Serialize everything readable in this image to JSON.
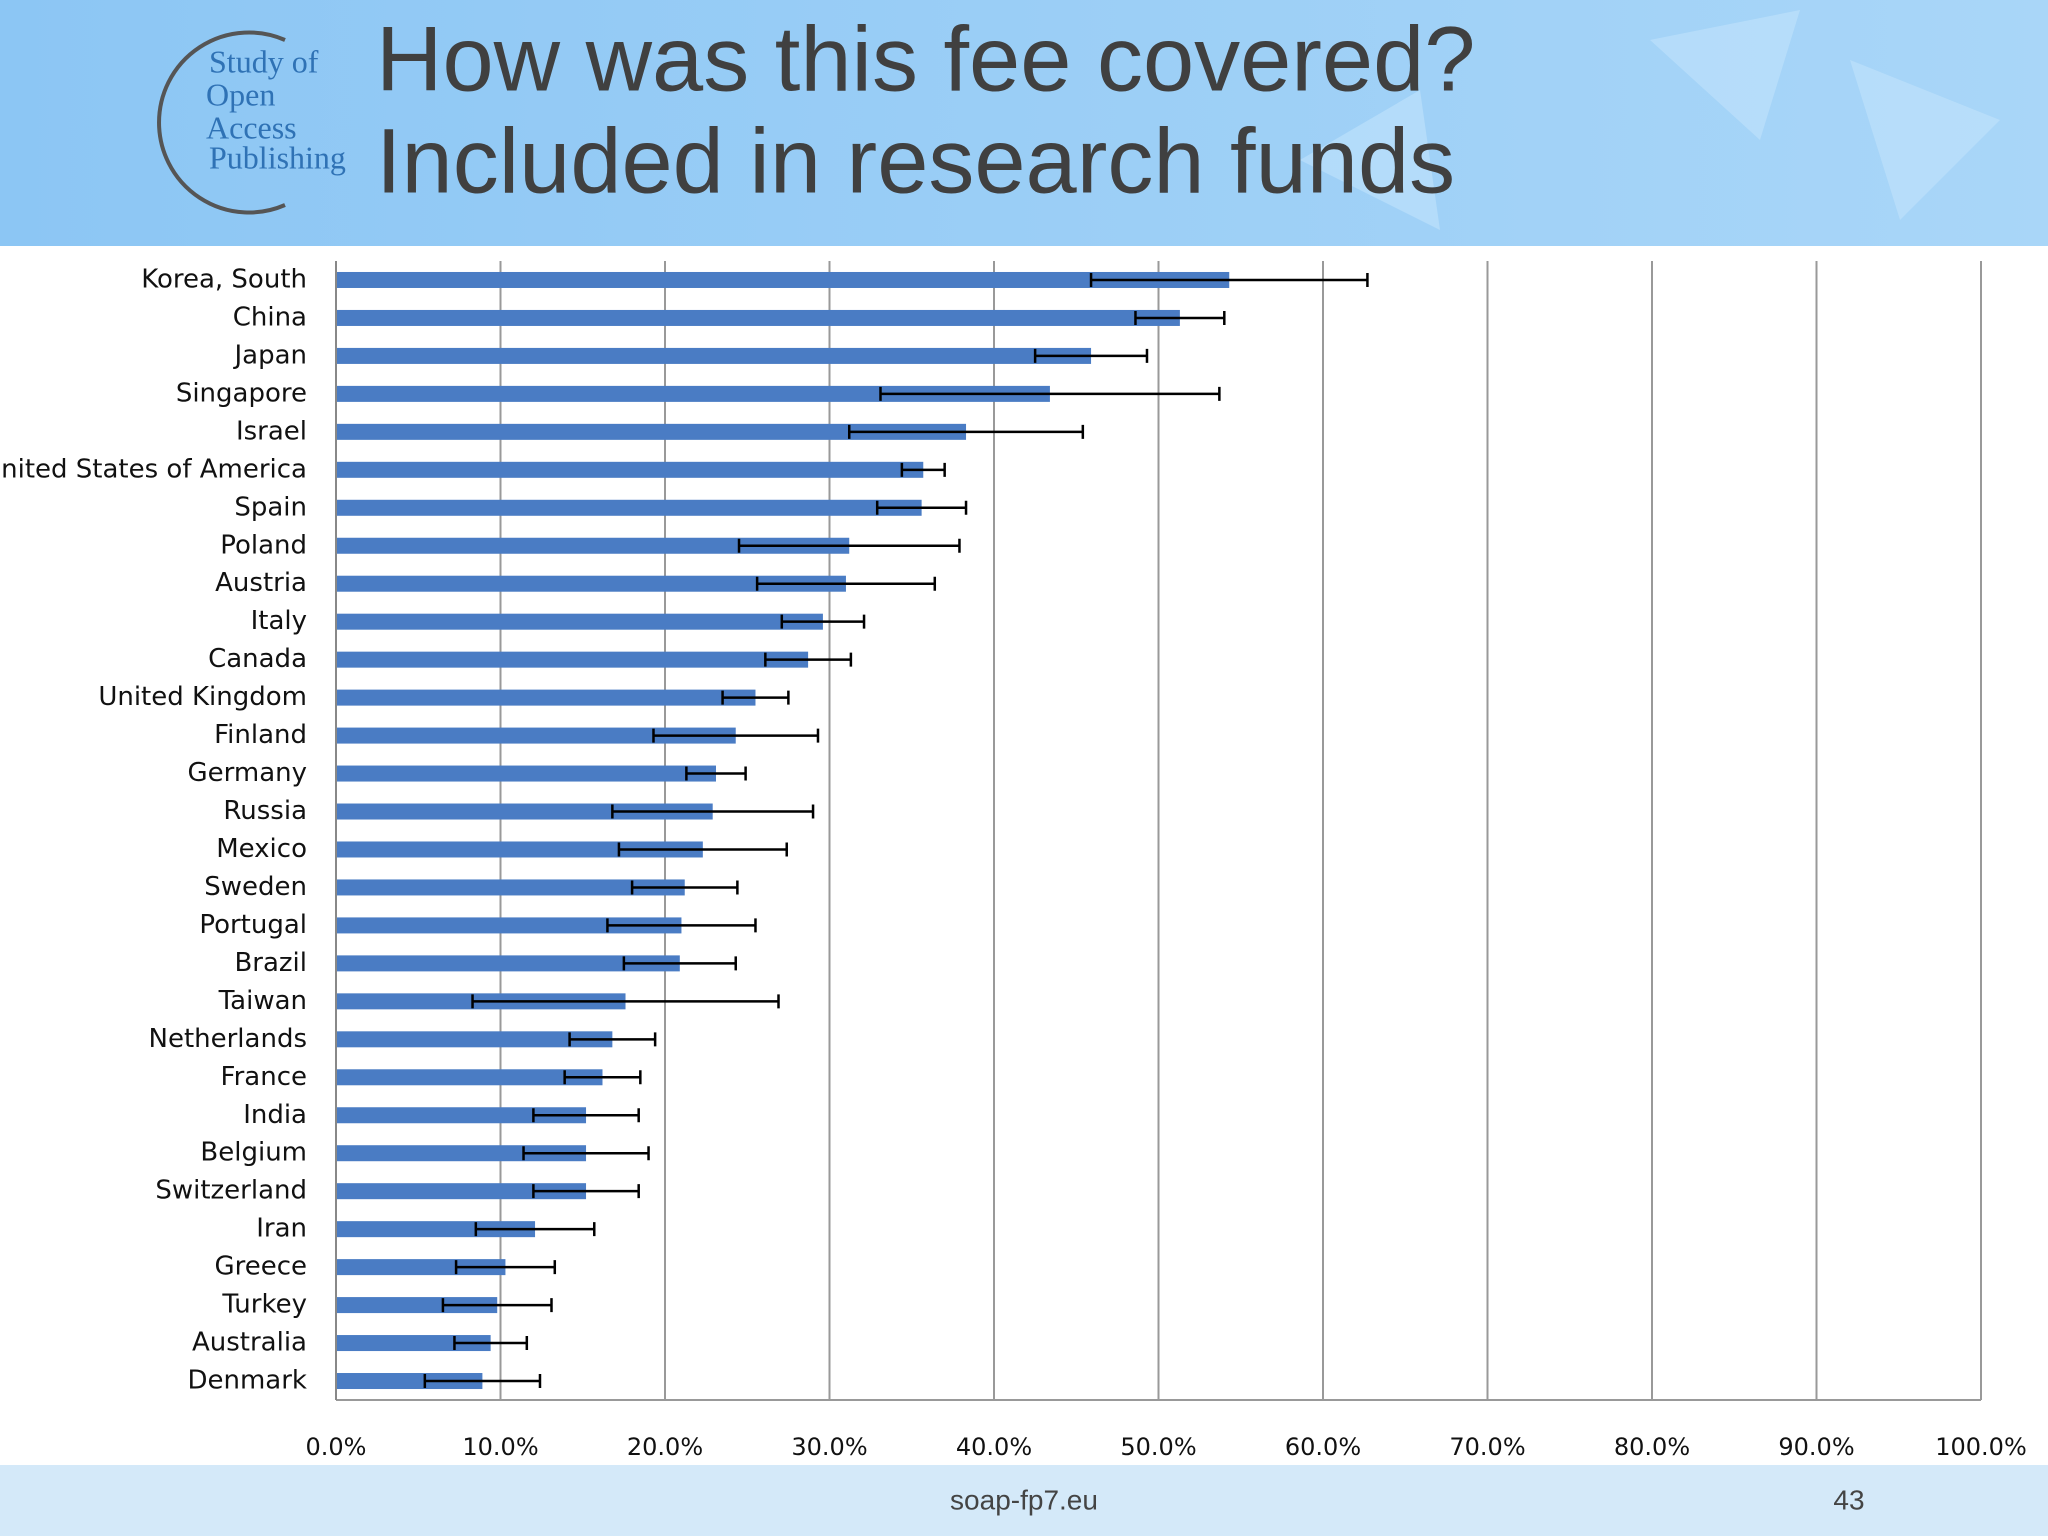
{
  "logo": [
    "Study of",
    "Open",
    "Access",
    "Publishing"
  ],
  "footer": {
    "site": "soap-fp7.eu",
    "page": "43"
  },
  "chart_data": {
    "type": "bar",
    "orientation": "horizontal",
    "title": [
      "How was this fee covered?",
      "Included in research funds"
    ],
    "categories": [
      "Korea, South",
      "China",
      "Japan",
      "Singapore",
      "Israel",
      "United States of America",
      "Spain",
      "Poland",
      "Austria",
      "Italy",
      "Canada",
      "United Kingdom",
      "Finland",
      "Germany",
      "Russia",
      "Mexico",
      "Sweden",
      "Portugal",
      "Brazil",
      "Taiwan",
      "Netherlands",
      "France",
      "India",
      "Belgium",
      "Switzerland",
      "Iran",
      "Greece",
      "Turkey",
      "Australia",
      "Denmark"
    ],
    "values": [
      54.3,
      51.3,
      45.9,
      43.4,
      38.3,
      35.7,
      35.6,
      31.2,
      31.0,
      29.6,
      28.7,
      25.5,
      24.3,
      23.1,
      22.9,
      22.3,
      21.2,
      21.0,
      20.9,
      17.6,
      16.8,
      16.2,
      15.2,
      15.2,
      15.2,
      12.1,
      10.3,
      9.8,
      9.4,
      8.9
    ],
    "errors": [
      8.4,
      2.7,
      3.4,
      10.3,
      7.1,
      1.3,
      2.7,
      6.7,
      5.4,
      2.5,
      2.6,
      2.0,
      5.0,
      1.8,
      6.1,
      5.1,
      3.2,
      4.5,
      3.4,
      9.3,
      2.6,
      2.3,
      3.2,
      3.8,
      3.2,
      3.6,
      3.0,
      3.3,
      2.2,
      3.5
    ],
    "color": "#4a7cc4",
    "xlim": [
      0,
      100
    ],
    "xticks": [
      {
        "value": 0,
        "label": "0.0%"
      },
      {
        "value": 10,
        "label": "10.0%"
      },
      {
        "value": 20,
        "label": "20.0%"
      },
      {
        "value": 30,
        "label": "30.0%"
      },
      {
        "value": 40,
        "label": "40.0%"
      },
      {
        "value": 50,
        "label": "50.0%"
      },
      {
        "value": 60,
        "label": "60.0%"
      },
      {
        "value": 70,
        "label": "70.0%"
      },
      {
        "value": 80,
        "label": "80.0%"
      },
      {
        "value": 90,
        "label": "90.0%"
      },
      {
        "value": 100,
        "label": "100.0%"
      }
    ],
    "grid": true
  }
}
